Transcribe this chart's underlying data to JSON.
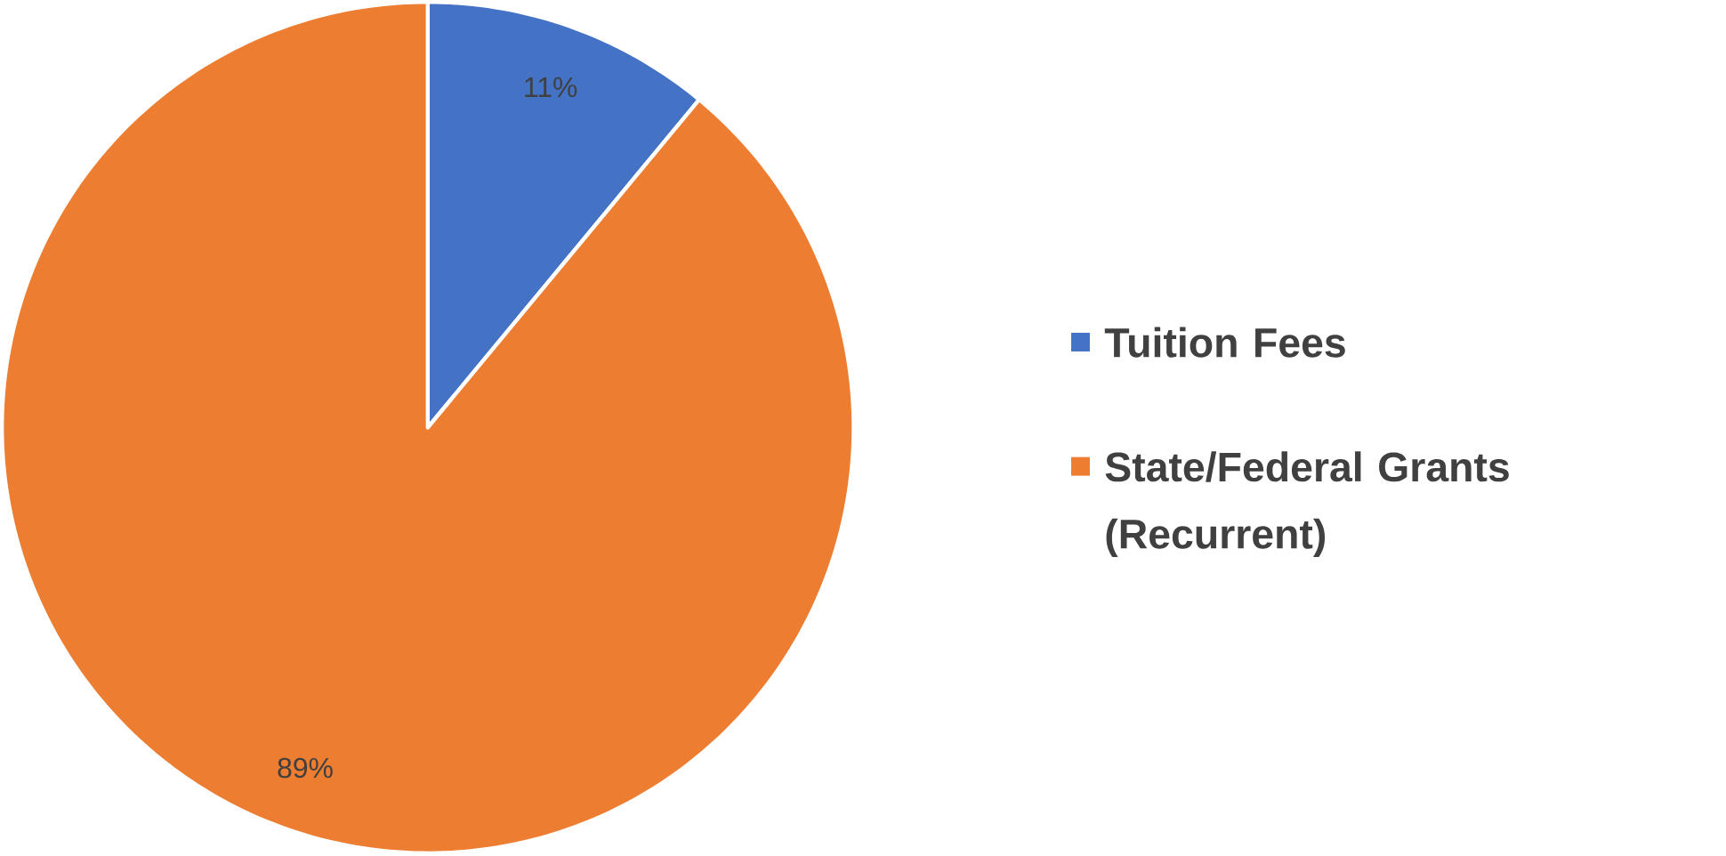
{
  "chart_data": {
    "type": "pie",
    "categories": [
      "Tuition Fees",
      "State/Federal Grants (Recurrent)"
    ],
    "values": [
      11,
      89
    ],
    "colors": [
      "#4472c4",
      "#ed7d31"
    ],
    "value_labels": [
      "11%",
      "89%"
    ],
    "legend": "right"
  }
}
